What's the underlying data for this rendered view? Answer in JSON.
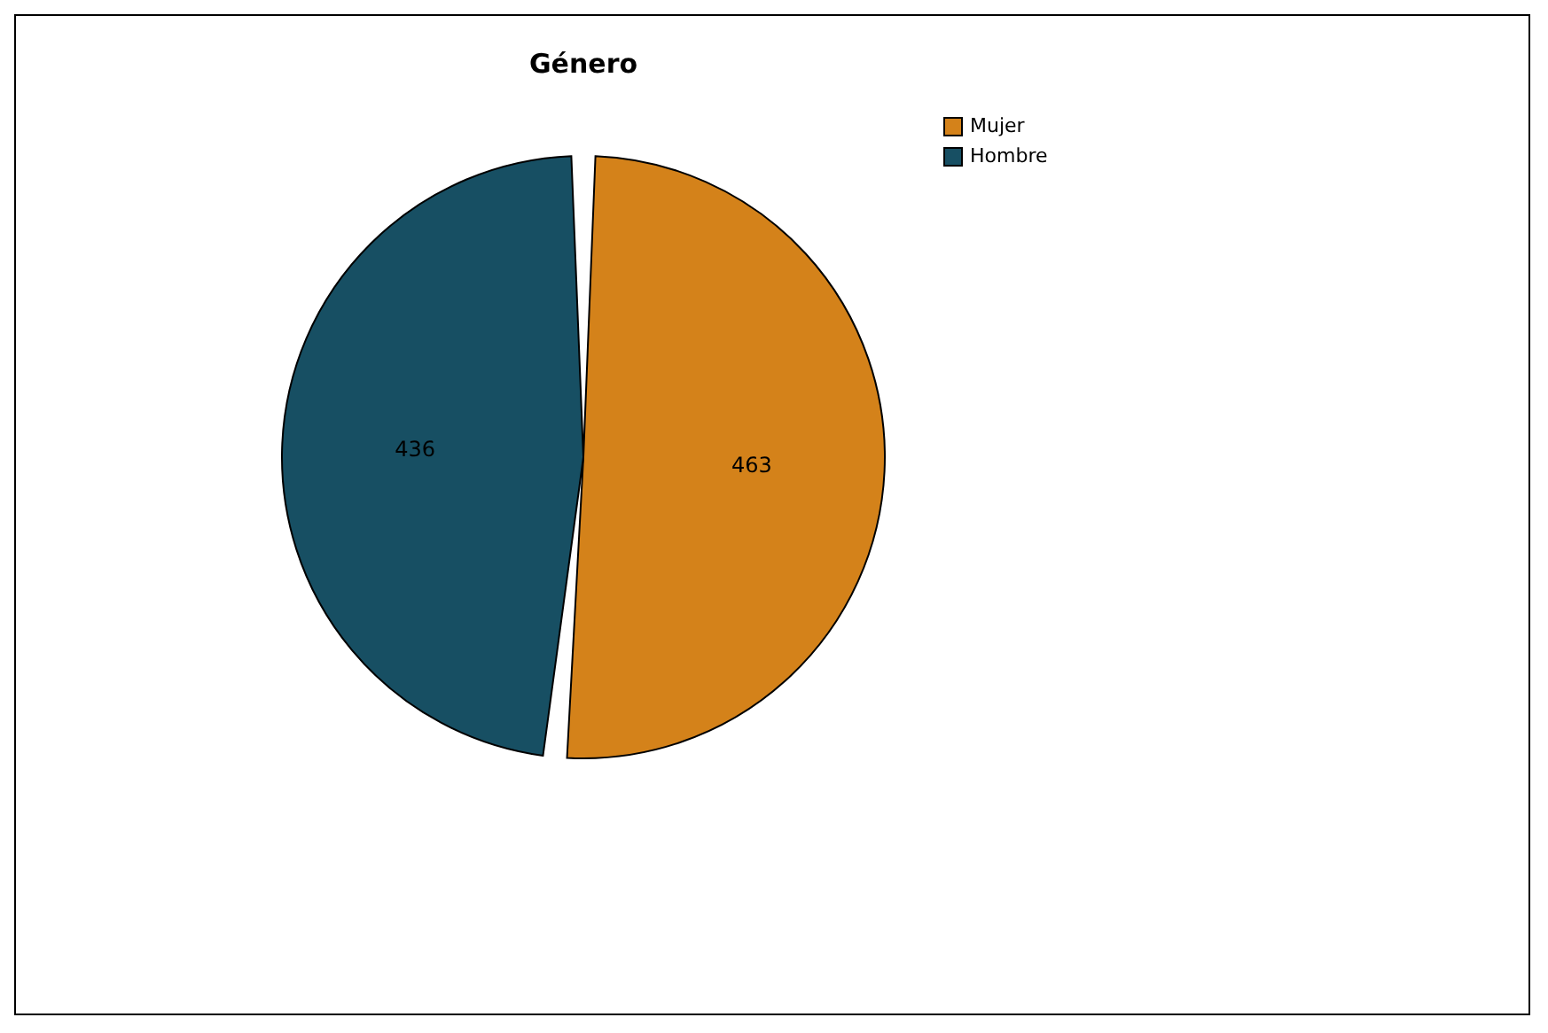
{
  "chart_data": {
    "type": "pie",
    "title": "Género",
    "categories": [
      "Mujer",
      "Hombre"
    ],
    "values": [
      463,
      436
    ],
    "colors": [
      "#d4821a",
      "#174f63"
    ],
    "data_labels": true,
    "legend": "top right"
  }
}
